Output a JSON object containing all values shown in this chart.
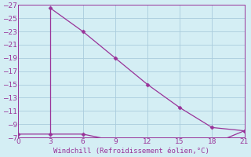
{
  "xlabel": "Windchill (Refroidissement éolien,°C)",
  "x_line1": [
    0,
    3,
    6,
    9,
    12,
    15,
    18,
    21
  ],
  "y_line1": [
    -7.5,
    -7.5,
    -7.5,
    -6.5,
    -6.0,
    -6.5,
    -6.0,
    -8.0
  ],
  "x_line2": [
    3,
    6,
    9,
    12,
    15,
    18,
    21
  ],
  "y_line2": [
    -26.5,
    -23.0,
    -19.0,
    -15.0,
    -11.5,
    -8.5,
    -8.0
  ],
  "line_color": "#993399",
  "marker": "D",
  "marker_size": 2.5,
  "bg_color": "#d4eef4",
  "grid_color": "#aaccdd",
  "text_color": "#993399",
  "xlim": [
    0,
    21
  ],
  "ylim": [
    -27,
    -7
  ],
  "xticks": [
    0,
    3,
    6,
    9,
    12,
    15,
    18,
    21
  ],
  "yticks": [
    -7,
    -9,
    -11,
    -13,
    -15,
    -17,
    -19,
    -21,
    -23,
    -25,
    -27
  ]
}
